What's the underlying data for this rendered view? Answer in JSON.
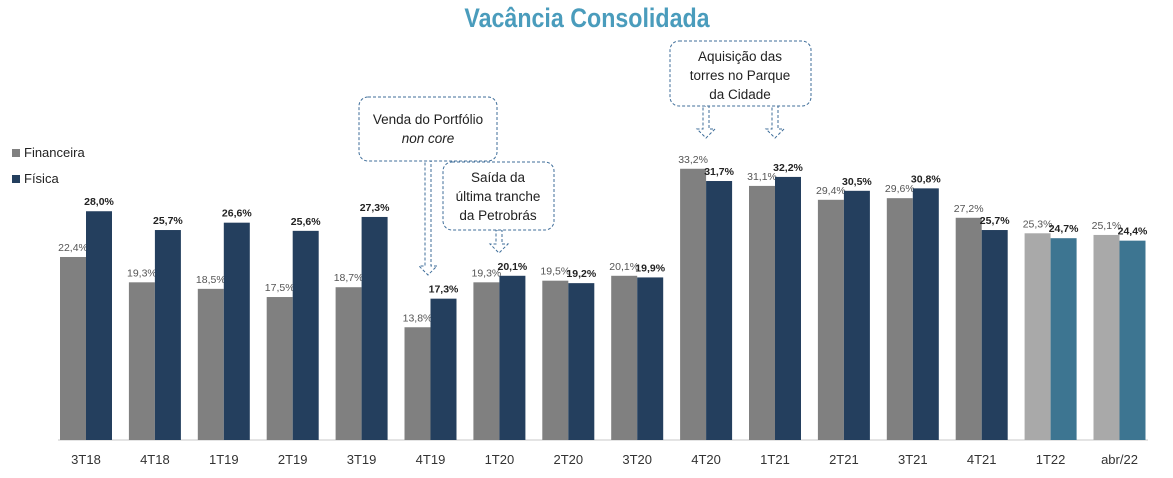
{
  "title": "Vacância Consolidada",
  "colors": {
    "financeira": "#808080",
    "fisica": "#243f5e",
    "financeira_light": "#a9a9a9",
    "fisica_light": "#3d7591",
    "callout_border": "#3f6e9a",
    "baseline": "#c8c8c8"
  },
  "chart_data": {
    "type": "bar",
    "title": "Vacância Consolidada",
    "categories": [
      "3T18",
      "4T18",
      "1T19",
      "2T19",
      "3T19",
      "4T19",
      "1T20",
      "2T20",
      "3T20",
      "4T20",
      "1T21",
      "2T21",
      "3T21",
      "4T21",
      "1T22",
      "abr/22"
    ],
    "series": [
      {
        "name": "Financeira",
        "values": [
          22.4,
          19.3,
          18.5,
          17.5,
          18.7,
          13.8,
          19.3,
          19.5,
          20.1,
          33.2,
          31.1,
          29.4,
          29.6,
          27.2,
          25.3,
          25.1
        ],
        "labels": [
          "22,4%",
          "19,3%",
          "18,5%",
          "17,5%",
          "18,7%",
          "13,8%",
          "19,3%",
          "19,5%",
          "20,1%",
          "33,2%",
          "31,1%",
          "29,4%",
          "29,6%",
          "27,2%",
          "25,3%",
          "25,1%"
        ]
      },
      {
        "name": "Física",
        "values": [
          28.0,
          25.7,
          26.6,
          25.6,
          27.3,
          17.3,
          20.1,
          19.2,
          19.9,
          31.7,
          32.2,
          30.5,
          30.8,
          25.7,
          24.7,
          24.4
        ],
        "labels": [
          "28,0%",
          "25,7%",
          "26,6%",
          "25,6%",
          "27,3%",
          "17,3%",
          "20,1%",
          "19,2%",
          "19,9%",
          "31,7%",
          "32,2%",
          "30,5%",
          "30,8%",
          "25,7%",
          "24,7%",
          "24,4%"
        ]
      }
    ],
    "ylim": [
      0,
      35
    ],
    "grid": false,
    "legend": "left",
    "light_categories": [
      "1T22",
      "abr/22"
    ],
    "annotations": [
      {
        "id": "venda",
        "lines": [
          "Venda do Portfólio",
          "non core"
        ],
        "italic_line": 1,
        "target": "4T19"
      },
      {
        "id": "saida",
        "lines": [
          "Saída da",
          "última tranche",
          "da Petrobrás"
        ],
        "target": "1T20"
      },
      {
        "id": "aquisicao",
        "lines": [
          "Aquisição das",
          "torres no Parque",
          "da Cidade"
        ],
        "targets": [
          "4T20",
          "1T21"
        ]
      }
    ]
  }
}
